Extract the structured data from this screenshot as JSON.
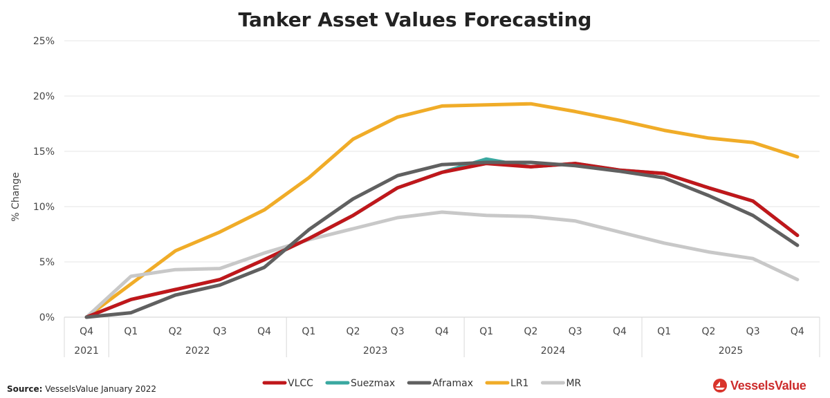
{
  "chart_data": {
    "type": "line",
    "title": "Tanker Asset Values Forecasting",
    "ylabel": "% Change",
    "xlabel": "",
    "ylim": [
      0,
      25
    ],
    "yticks": [
      0,
      5,
      10,
      15,
      20,
      25
    ],
    "ytick_labels": [
      "0%",
      "5%",
      "10%",
      "15%",
      "20%",
      "25%"
    ],
    "grid": true,
    "legend_position": "bottom",
    "categories": [
      "Q4",
      "Q1",
      "Q2",
      "Q3",
      "Q4",
      "Q1",
      "Q2",
      "Q3",
      "Q4",
      "Q1",
      "Q2",
      "Q3",
      "Q4",
      "Q1",
      "Q2",
      "Q3",
      "Q4"
    ],
    "year_groups": [
      {
        "label": "2021",
        "count": 1
      },
      {
        "label": "2022",
        "count": 4
      },
      {
        "label": "2023",
        "count": 4
      },
      {
        "label": "2024",
        "count": 4
      },
      {
        "label": "2025",
        "count": 4
      }
    ],
    "series": [
      {
        "name": "VLCC",
        "color": "#c0171b",
        "values": [
          0,
          1.6,
          2.5,
          3.4,
          5.2,
          7.1,
          9.2,
          11.7,
          13.1,
          13.9,
          13.6,
          13.9,
          13.3,
          13.0,
          11.7,
          10.5,
          7.4
        ]
      },
      {
        "name": "Suezmax",
        "color": "#3aa8a0",
        "values": [
          0,
          1.6,
          2.5,
          3.4,
          5.2,
          7.1,
          9.2,
          11.7,
          13.1,
          14.3,
          13.6,
          13.9,
          13.3,
          13.0,
          11.7,
          10.5,
          7.4
        ]
      },
      {
        "name": "Aframax",
        "color": "#606060",
        "values": [
          0,
          0.4,
          2.0,
          2.9,
          4.5,
          7.9,
          10.7,
          12.8,
          13.8,
          14.0,
          14.0,
          13.7,
          13.2,
          12.6,
          11.0,
          9.2,
          6.5
        ]
      },
      {
        "name": "LR1",
        "color": "#f0ac28",
        "values": [
          0,
          3.0,
          6.0,
          7.7,
          9.7,
          12.6,
          16.1,
          18.1,
          19.1,
          19.2,
          19.3,
          18.6,
          17.8,
          16.9,
          16.2,
          15.8,
          14.5
        ]
      },
      {
        "name": "MR",
        "color": "#c8c8c8",
        "values": [
          0,
          3.7,
          4.3,
          4.4,
          5.8,
          7.0,
          8.0,
          9.0,
          9.5,
          9.2,
          9.1,
          8.7,
          7.7,
          6.7,
          5.9,
          5.3,
          3.4
        ]
      }
    ]
  },
  "footer": {
    "source_label": "Source:",
    "source_text": "VesselsValue January 2022",
    "brand": "VesselsValue"
  }
}
